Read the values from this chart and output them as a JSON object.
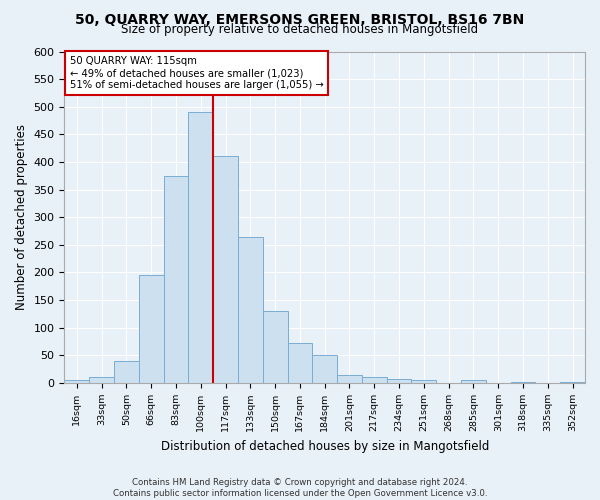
{
  "title_line1": "50, QUARRY WAY, EMERSONS GREEN, BRISTOL, BS16 7BN",
  "title_line2": "Size of property relative to detached houses in Mangotsfield",
  "xlabel": "Distribution of detached houses by size in Mangotsfield",
  "ylabel": "Number of detached properties",
  "bins": [
    "16sqm",
    "33sqm",
    "50sqm",
    "66sqm",
    "83sqm",
    "100sqm",
    "117sqm",
    "133sqm",
    "150sqm",
    "167sqm",
    "184sqm",
    "201sqm",
    "217sqm",
    "234sqm",
    "251sqm",
    "268sqm",
    "285sqm",
    "301sqm",
    "318sqm",
    "335sqm",
    "352sqm"
  ],
  "values": [
    5,
    10,
    40,
    195,
    375,
    490,
    410,
    265,
    130,
    72,
    50,
    15,
    10,
    8,
    5,
    0,
    5,
    0,
    2,
    0,
    2
  ],
  "bar_color": "#cce0f0",
  "bar_edge_color": "#7aadd4",
  "vline_x": 5.5,
  "annotation_line1": "50 QUARRY WAY: 115sqm",
  "annotation_line2": "← 49% of detached houses are smaller (1,023)",
  "annotation_line3": "51% of semi-detached houses are larger (1,055) →",
  "annotation_box_facecolor": "#ffffff",
  "annotation_box_edgecolor": "#cc0000",
  "vline_color": "#cc0000",
  "ylim": [
    0,
    600
  ],
  "yticks": [
    0,
    50,
    100,
    150,
    200,
    250,
    300,
    350,
    400,
    450,
    500,
    550,
    600
  ],
  "background_color": "#e8f0f8",
  "grid_color": "#ffffff",
  "footer_line1": "Contains HM Land Registry data © Crown copyright and database right 2024.",
  "footer_line2": "Contains public sector information licensed under the Open Government Licence v3.0."
}
